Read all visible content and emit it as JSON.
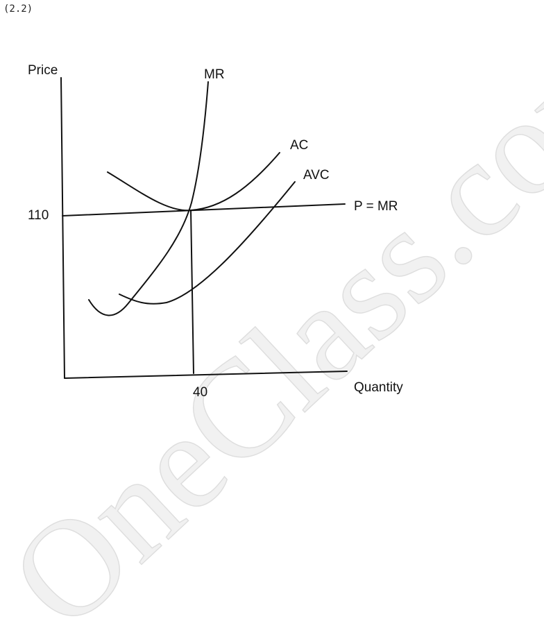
{
  "header": {
    "label": "(2.2)"
  },
  "diagram": {
    "axes": {
      "y_label": "Price",
      "x_label": "Quantity"
    },
    "ticks": {
      "price": "110",
      "quantity": "40"
    },
    "curves": {
      "mr": "MR",
      "ac": "AC",
      "avc": "AVC",
      "price_line": "P = MR"
    }
  },
  "watermark": "OneClass.com"
}
